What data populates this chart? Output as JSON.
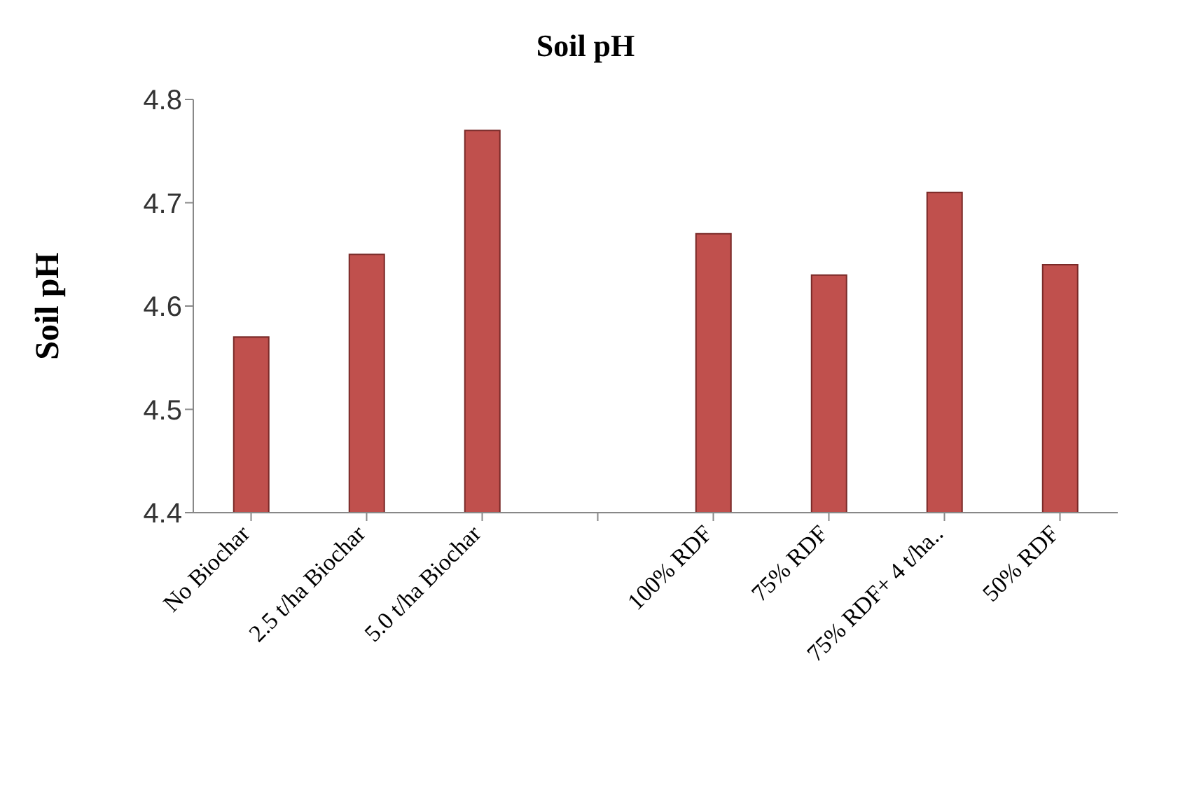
{
  "chart_data": {
    "type": "bar",
    "title": "Soil pH",
    "ylabel": "Soil pH",
    "categories": [
      "No Biochar",
      "2.5 t/ha Biochar",
      "5.0 t/ha Biochar",
      null,
      "100% RDF",
      "75% RDF",
      "75% RDF+ 4 t/ha..",
      "50% RDF"
    ],
    "values": [
      4.57,
      4.65,
      4.77,
      null,
      4.67,
      4.63,
      4.71,
      4.64
    ],
    "color": "#c0504d",
    "ylim": [
      4.4,
      4.8
    ],
    "yticks": [
      4.4,
      4.5,
      4.6,
      4.7,
      4.8
    ],
    "grid": false,
    "legend": false
  }
}
